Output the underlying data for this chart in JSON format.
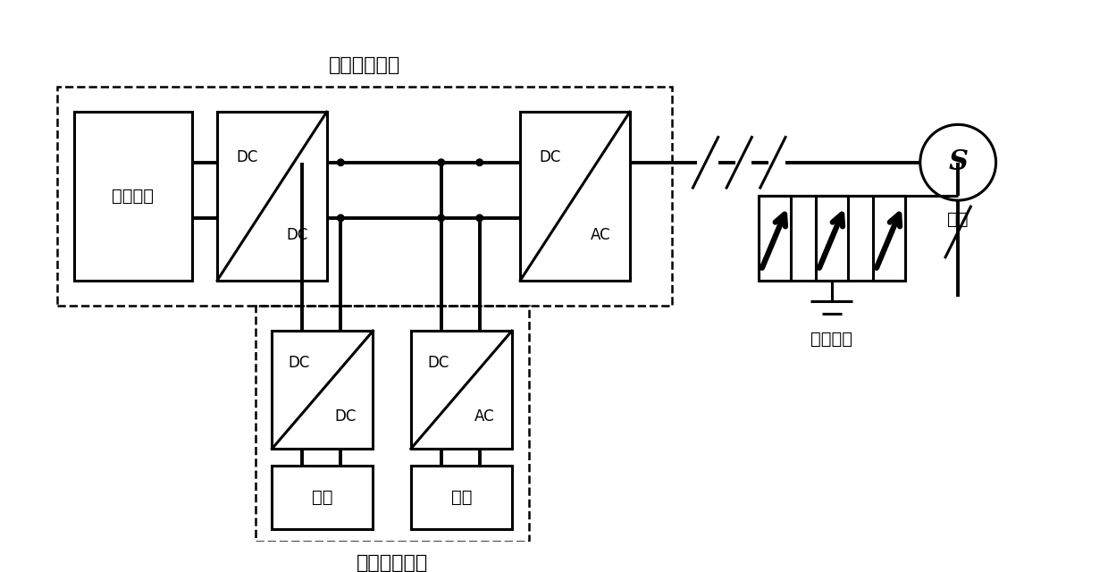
{
  "title_pv": "光伏发电系统",
  "title_storage": "混合储能系统",
  "label_pv_station": "光伏电站",
  "label_battery": "电池",
  "label_flywheel": "飞轮",
  "label_grid": "电网",
  "label_load": "用户负载",
  "bg_color": "#ffffff",
  "font_size_label": 14,
  "font_size_title": 16,
  "font_size_dc": 12,
  "font_size_s": 22
}
